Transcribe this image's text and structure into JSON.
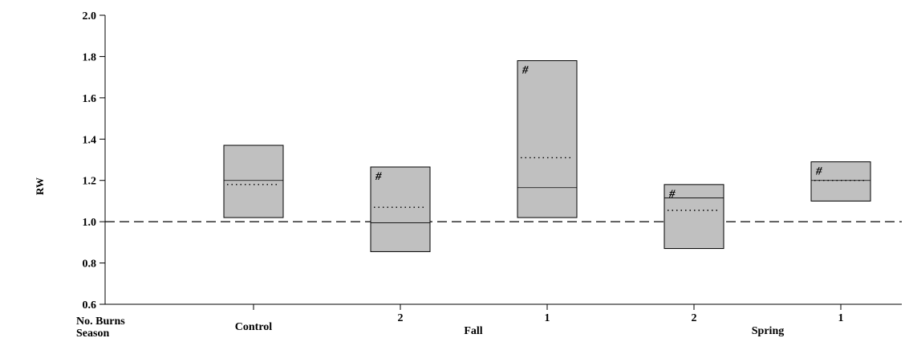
{
  "chart_data": {
    "type": "box",
    "ylabel": "RW",
    "ylim": [
      0.6,
      2.0
    ],
    "yticks": [
      "0.6",
      "0.8",
      "1.0",
      "1.2",
      "1.4",
      "1.6",
      "1.8",
      "2.0"
    ],
    "reference_line": 1.0,
    "row_labels": {
      "no_burns": "No. Burns",
      "season": "Season"
    },
    "season_labels": [
      "Control",
      "Fall",
      "Spring"
    ],
    "boxes": [
      {
        "category": "Control",
        "burns": "",
        "low": 1.02,
        "high": 1.37,
        "median": 1.2,
        "mean": 1.18,
        "marker": ""
      },
      {
        "category": "Fall",
        "burns": "2",
        "low": 0.855,
        "high": 1.265,
        "median": 0.995,
        "mean": 1.07,
        "marker": "#"
      },
      {
        "category": "Fall",
        "burns": "1",
        "low": 1.02,
        "high": 1.78,
        "median": 1.165,
        "mean": 1.31,
        "marker": "#"
      },
      {
        "category": "Spring",
        "burns": "2",
        "low": 0.87,
        "high": 1.18,
        "median": 1.115,
        "mean": 1.055,
        "marker": "#"
      },
      {
        "category": "Spring",
        "burns": "1",
        "low": 1.1,
        "high": 1.29,
        "median": 1.2,
        "mean": 1.2,
        "marker": "#"
      }
    ],
    "colors": {
      "box_fill": "#c0c0c0",
      "stroke": "#000000"
    }
  }
}
